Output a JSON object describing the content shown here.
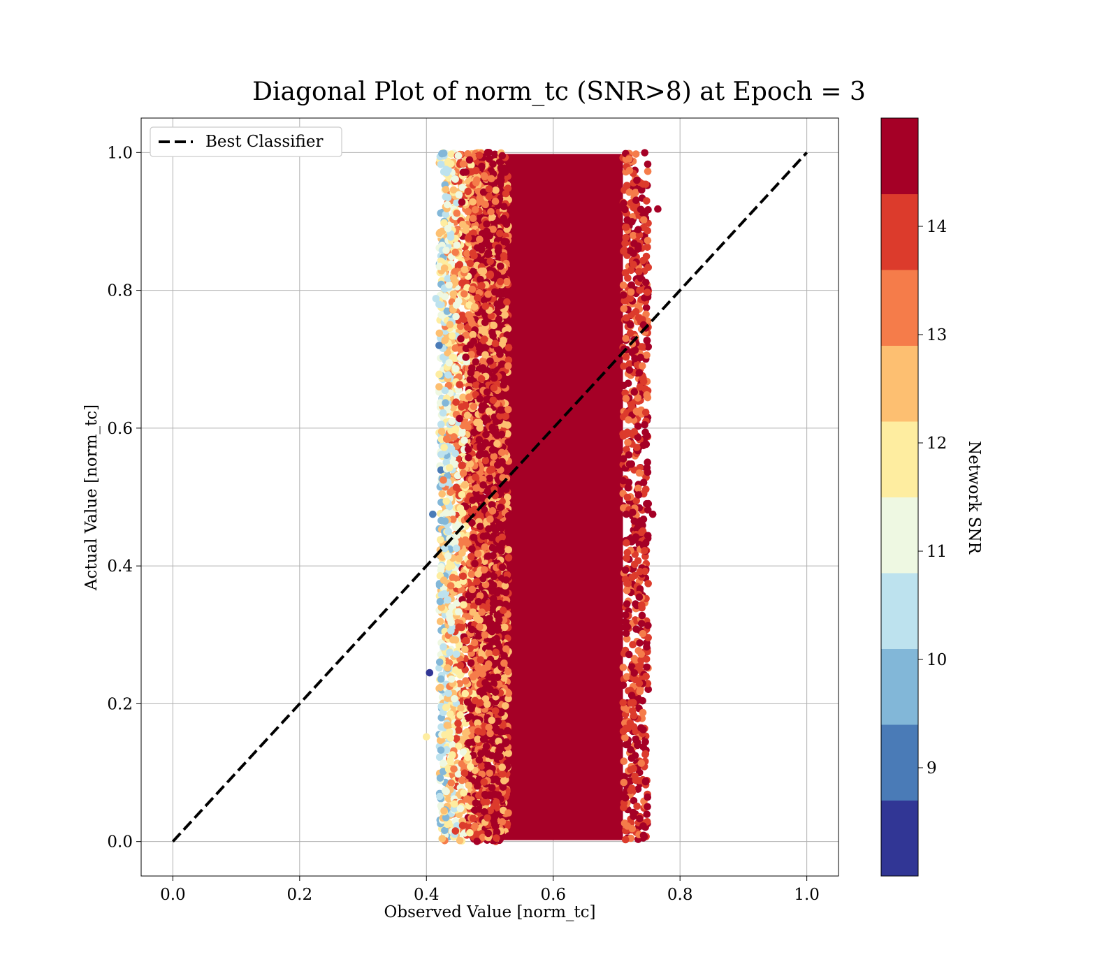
{
  "chart_data": {
    "type": "scatter",
    "title": "Diagonal Plot of norm_tc (SNR>8) at Epoch = 3",
    "xlabel": "Observed Value [norm_tc]",
    "ylabel": "Actual Value [norm_tc]",
    "xlim": [
      -0.05,
      1.05
    ],
    "ylim": [
      -0.05,
      1.05
    ],
    "xticks": [
      "0.0",
      "0.2",
      "0.4",
      "0.6",
      "0.8",
      "1.0"
    ],
    "yticks": [
      "0.0",
      "0.2",
      "0.4",
      "0.6",
      "0.8",
      "1.0"
    ],
    "grid": true,
    "legend": {
      "placement": "top-left",
      "entries": [
        "Best Classifier"
      ]
    },
    "reference_line": {
      "name": "Best Classifier",
      "style": "dashed",
      "color": "#000000",
      "x": [
        0.0,
        1.0
      ],
      "y": [
        0.0,
        1.0
      ]
    },
    "point_cloud": {
      "x_range_core": [
        0.47,
        0.73
      ],
      "x_range_outer": [
        0.4,
        0.77
      ],
      "y_range": [
        0.0,
        1.0
      ],
      "dominant_snr": 14.5
    },
    "colorbar": {
      "label": "Network SNR",
      "range": [
        8.0,
        15.0
      ],
      "ticks": [
        "9",
        "10",
        "11",
        "12",
        "13",
        "14"
      ],
      "tick_values": [
        9,
        10,
        11,
        12,
        13,
        14
      ],
      "levels": [
        {
          "from": 8.0,
          "to": 8.7,
          "color": "#313695"
        },
        {
          "from": 8.7,
          "to": 9.4,
          "color": "#4a7bb7"
        },
        {
          "from": 9.4,
          "to": 10.1,
          "color": "#82b7d8"
        },
        {
          "from": 10.1,
          "to": 10.8,
          "color": "#bde2ee"
        },
        {
          "from": 10.8,
          "to": 11.5,
          "color": "#eef8e2"
        },
        {
          "from": 11.5,
          "to": 12.2,
          "color": "#feeda0"
        },
        {
          "from": 12.2,
          "to": 12.9,
          "color": "#fdbf71"
        },
        {
          "from": 12.9,
          "to": 13.6,
          "color": "#f57c4a"
        },
        {
          "from": 13.6,
          "to": 14.3,
          "color": "#dc3b2c"
        },
        {
          "from": 14.3,
          "to": 15.0,
          "color": "#a50026"
        }
      ]
    }
  }
}
